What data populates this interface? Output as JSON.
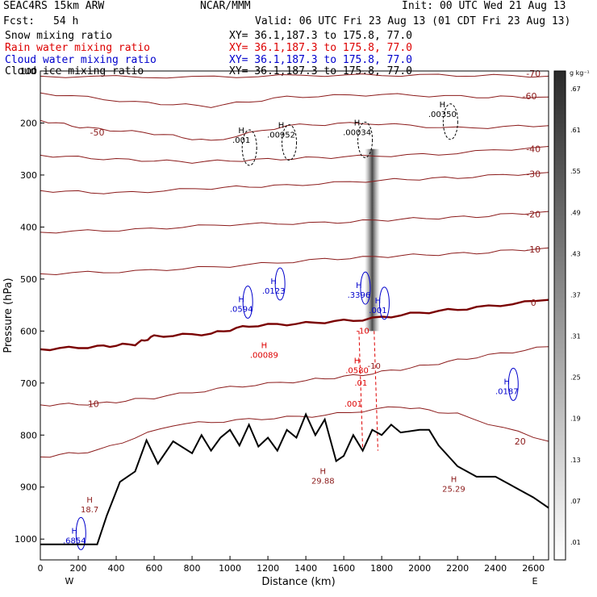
{
  "header": {
    "model": "SEAC4RS 15km ARW",
    "org": "NCAR/MMM",
    "init": "Init: 00 UTC Wed 21 Aug 13",
    "fcst_label": "Fcst:",
    "fcst_value": "54 h",
    "valid": "Valid: 06 UTC Fri 23 Aug 13 (01 CDT Fri 23 Aug 13)",
    "fields": [
      {
        "name": "Snow mixing ratio",
        "xy": "XY=  36.1,187.3 to 175.8, 77.0",
        "color": "#000000"
      },
      {
        "name": "Rain water mixing ratio",
        "xy": "XY=  36.1,187.3 to 175.8, 77.0",
        "color": "#dd0000"
      },
      {
        "name": "Cloud water mixing ratio",
        "xy": "XY=  36.1,187.3 to 175.8, 77.0",
        "color": "#0000cc"
      },
      {
        "name": "Cloud ice mixing ratio",
        "xy": "XY=  36.1,187.3 to 175.8, 77.0",
        "color": "#000000"
      }
    ]
  },
  "colors": {
    "temperature": "#8b1a1a",
    "freezing": "#7a0000",
    "terrain": "#000000",
    "rain": "#dd0000",
    "cloud_water": "#0000cc",
    "snow": "#000000"
  },
  "chart_data": {
    "type": "contour",
    "xlabel": "Distance (km)",
    "ylabel": "Pressure (hPa)",
    "xlim": [
      0,
      2680
    ],
    "ylim": [
      1040,
      100
    ],
    "x_ticks": [
      0,
      200,
      400,
      600,
      800,
      1000,
      1200,
      1400,
      1600,
      1800,
      2000,
      2200,
      2400,
      2600
    ],
    "y_ticks": [
      1000,
      900,
      800,
      700,
      600,
      500,
      400,
      300,
      200,
      100
    ],
    "y_tick_labels": [
      "1000",
      "900",
      "800",
      "700",
      "600",
      "500",
      "400",
      "300",
      "200",
      "100"
    ],
    "x_end_labels": {
      "left": "W",
      "right": "E"
    },
    "colorbar": {
      "unit": "g kg⁻¹",
      "labels": [
        ".01",
        ".07",
        ".13",
        ".19",
        ".25",
        ".31",
        ".37",
        ".43",
        ".49",
        ".55",
        ".61",
        ".67"
      ]
    },
    "temperature_contours": [
      {
        "level": -70,
        "label": "-70",
        "points": [
          [
            0,
            110
          ],
          [
            800,
            112
          ],
          [
            1500,
            108
          ],
          [
            2100,
            108
          ],
          [
            2680,
            110
          ]
        ],
        "label_at": [
          2600,
          105
        ]
      },
      {
        "level": -60,
        "label": "-60",
        "points": [
          [
            0,
            142
          ],
          [
            500,
            160
          ],
          [
            900,
            168
          ],
          [
            1300,
            150
          ],
          [
            1800,
            145
          ],
          [
            2300,
            150
          ],
          [
            2680,
            150
          ]
        ],
        "label_at": [
          2580,
          148
        ]
      },
      {
        "level": -50,
        "label": "-50",
        "points": [
          [
            0,
            195
          ],
          [
            250,
            210
          ],
          [
            600,
            220
          ],
          [
            900,
            235
          ],
          [
            1300,
            205
          ],
          [
            1700,
            200
          ],
          [
            2200,
            210
          ],
          [
            2680,
            205
          ]
        ],
        "label_at": [
          300,
          218
        ]
      },
      {
        "level": -40,
        "label": "-40",
        "points": [
          [
            0,
            262
          ],
          [
            400,
            270
          ],
          [
            800,
            275
          ],
          [
            1200,
            270
          ],
          [
            1600,
            265
          ],
          [
            2100,
            260
          ],
          [
            2680,
            245
          ]
        ],
        "label_at": [
          2600,
          250
        ]
      },
      {
        "level": -30,
        "label": "-30",
        "points": [
          [
            0,
            330
          ],
          [
            400,
            335
          ],
          [
            900,
            325
          ],
          [
            1300,
            320
          ],
          [
            1800,
            310
          ],
          [
            2200,
            305
          ],
          [
            2680,
            295
          ]
        ],
        "label_at": [
          2600,
          298
        ]
      },
      {
        "level": -20,
        "label": "-20",
        "points": [
          [
            0,
            410
          ],
          [
            500,
            405
          ],
          [
            1000,
            395
          ],
          [
            1500,
            392
          ],
          [
            1900,
            385
          ],
          [
            2300,
            380
          ],
          [
            2680,
            370
          ]
        ],
        "label_at": [
          2600,
          375
        ]
      },
      {
        "level": -10,
        "label": "-10",
        "points": [
          [
            0,
            490
          ],
          [
            500,
            485
          ],
          [
            1000,
            475
          ],
          [
            1500,
            462
          ],
          [
            1900,
            455
          ],
          [
            2300,
            450
          ],
          [
            2680,
            440
          ]
        ],
        "label_at": [
          2600,
          443
        ]
      },
      {
        "level": 0,
        "label": "0",
        "points": [
          [
            0,
            635
          ],
          [
            300,
            630
          ],
          [
            500,
            625
          ],
          [
            600,
            610
          ],
          [
            900,
            605
          ],
          [
            1100,
            590
          ],
          [
            1400,
            585
          ],
          [
            1700,
            578
          ],
          [
            2000,
            565
          ],
          [
            2300,
            555
          ],
          [
            2680,
            540
          ]
        ],
        "label_at": [
          2600,
          545
        ]
      },
      {
        "level": 10,
        "label": "10",
        "points": [
          [
            0,
            742
          ],
          [
            300,
            740
          ],
          [
            600,
            728
          ],
          [
            1000,
            708
          ],
          [
            1400,
            695
          ],
          [
            1700,
            684
          ],
          [
            2000,
            668
          ],
          [
            2300,
            650
          ],
          [
            2680,
            630
          ]
        ],
        "label_at": [
          280,
          740
        ]
      },
      {
        "level": 20,
        "label": "20",
        "points": [
          [
            0,
            842
          ],
          [
            300,
            830
          ],
          [
            700,
            780
          ],
          [
            1100,
            770
          ],
          [
            1500,
            762
          ],
          [
            1900,
            745
          ],
          [
            2200,
            760
          ],
          [
            2680,
            812
          ]
        ],
        "label_at": [
          2530,
          812
        ]
      }
    ],
    "terrain": [
      [
        0,
        1010
      ],
      [
        150,
        1010
      ],
      [
        300,
        1010
      ],
      [
        350,
        955
      ],
      [
        420,
        890
      ],
      [
        500,
        870
      ],
      [
        560,
        810
      ],
      [
        620,
        855
      ],
      [
        700,
        812
      ],
      [
        800,
        835
      ],
      [
        850,
        800
      ],
      [
        900,
        830
      ],
      [
        950,
        805
      ],
      [
        1000,
        790
      ],
      [
        1050,
        820
      ],
      [
        1100,
        780
      ],
      [
        1150,
        822
      ],
      [
        1200,
        805
      ],
      [
        1250,
        830
      ],
      [
        1300,
        790
      ],
      [
        1350,
        805
      ],
      [
        1400,
        760
      ],
      [
        1450,
        800
      ],
      [
        1500,
        770
      ],
      [
        1560,
        850
      ],
      [
        1600,
        840
      ],
      [
        1650,
        800
      ],
      [
        1700,
        830
      ],
      [
        1750,
        790
      ],
      [
        1800,
        800
      ],
      [
        1850,
        780
      ],
      [
        1900,
        795
      ],
      [
        2000,
        790
      ],
      [
        2050,
        790
      ],
      [
        2100,
        820
      ],
      [
        2200,
        860
      ],
      [
        2300,
        880
      ],
      [
        2400,
        880
      ],
      [
        2500,
        900
      ],
      [
        2600,
        920
      ],
      [
        2680,
        940
      ]
    ],
    "maxima": [
      {
        "label": ".001",
        "x": 1060,
        "p": 235,
        "color": "#000000",
        "field": "snow"
      },
      {
        "label": ".00952",
        "x": 1270,
        "p": 225,
        "color": "#000000",
        "field": "snow"
      },
      {
        "label": ".00034",
        "x": 1670,
        "p": 220,
        "color": "#000000",
        "field": "snow"
      },
      {
        "label": ".00350",
        "x": 2120,
        "p": 185,
        "color": "#000000",
        "field": "snow"
      },
      {
        "label": ".0123",
        "x": 1230,
        "p": 525,
        "color": "#0000cc",
        "field": "cloud_water"
      },
      {
        "label": ".0594",
        "x": 1060,
        "p": 560,
        "color": "#0000cc",
        "field": "cloud_water"
      },
      {
        "label": ".3396",
        "x": 1680,
        "p": 533,
        "color": "#0000cc",
        "field": "cloud_water"
      },
      {
        "label": ".001",
        "x": 1780,
        "p": 562,
        "color": "#0000cc",
        "field": "cloud_water"
      },
      {
        "label": ".0187",
        "x": 2460,
        "p": 718,
        "color": "#0000cc",
        "field": "cloud_water"
      },
      {
        "label": ".6854",
        "x": 180,
        "p": 1005,
        "color": "#0000cc",
        "field": "cloud_water"
      },
      {
        "label": ".00089",
        "x": 1180,
        "p": 648,
        "color": "#dd0000",
        "field": "rain"
      },
      {
        "label": ".0580",
        "x": 1670,
        "p": 678,
        "color": "#dd0000",
        "field": "rain"
      },
      {
        "label": "18.7",
        "x": 260,
        "p": 945,
        "color": "#8b1a1a",
        "field": "temperature"
      },
      {
        "label": "29.88",
        "x": 1490,
        "p": 890,
        "color": "#8b1a1a",
        "field": "temperature"
      },
      {
        "label": "25.29",
        "x": 2180,
        "p": 906,
        "color": "#8b1a1a",
        "field": "temperature"
      }
    ],
    "extra_labels": [
      {
        "text": "-10",
        "x": 1700,
        "p": 605,
        "color": "#dd0000"
      },
      {
        "text": ".001",
        "x": 1650,
        "p": 745,
        "color": "#dd0000"
      },
      {
        "text": "-10",
        "x": 1760,
        "p": 672,
        "color": "#8b1a1a"
      },
      {
        "text": ".01",
        "x": 1690,
        "p": 705,
        "color": "#dd0000"
      }
    ]
  }
}
